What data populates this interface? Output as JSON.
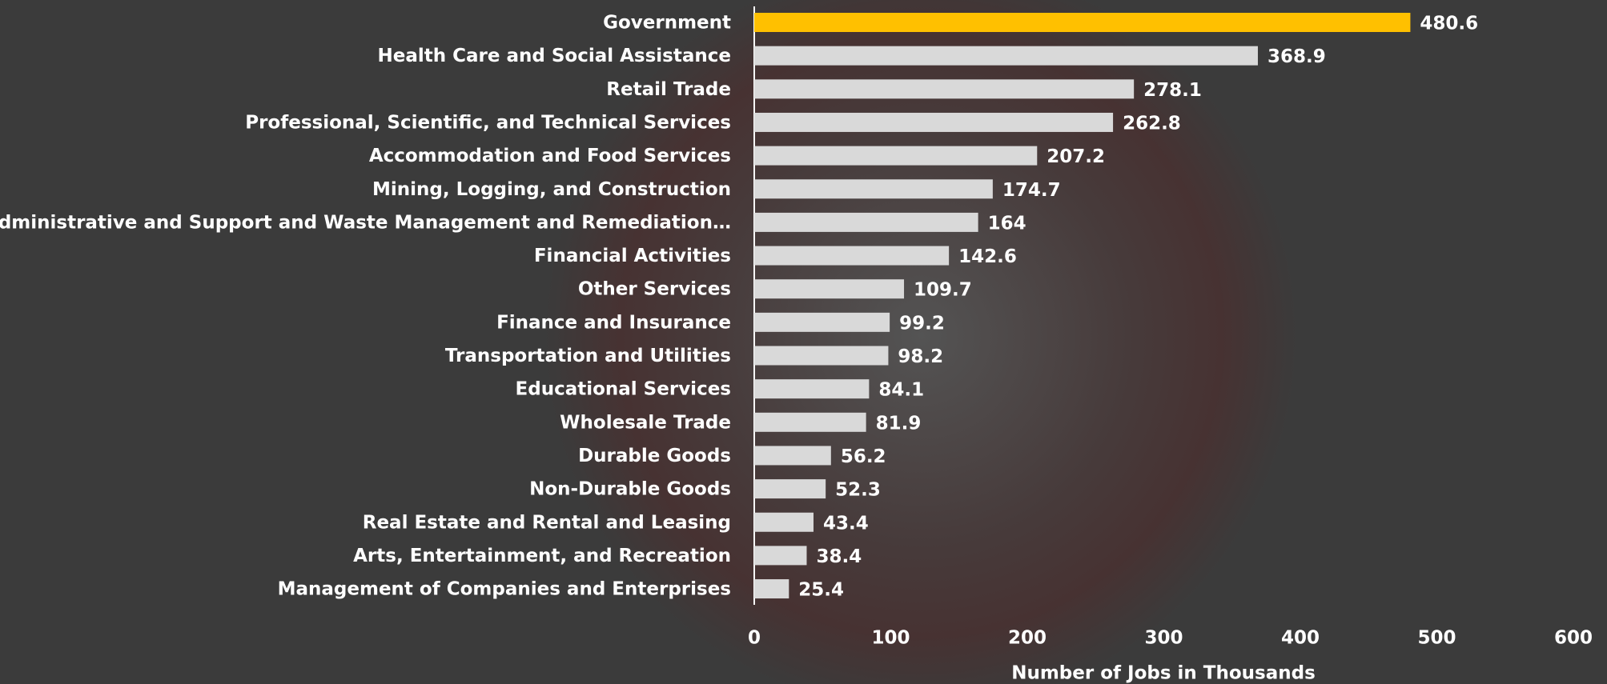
{
  "chart_data": {
    "type": "bar",
    "orientation": "horizontal",
    "x_axis_label": "Number of Jobs in Thousands",
    "categories": [
      "Government",
      "Health Care and Social Assistance",
      "Retail Trade",
      "Professional, Scientific, and Technical Services",
      "Accommodation and Food Services",
      "Mining, Logging, and Construction",
      "Administrative and Support and Waste Management and Remediation…",
      "Financial Activities",
      "Other Services",
      "Finance and Insurance",
      "Transportation and Utilities",
      "Educational Services",
      "Wholesale Trade",
      "Durable Goods",
      "Non-Durable Goods",
      "Real Estate and Rental and Leasing",
      "Arts, Entertainment, and Recreation",
      "Management of Companies and Enterprises"
    ],
    "values": [
      480.6,
      368.9,
      278.1,
      262.8,
      207.2,
      174.7,
      164,
      142.6,
      109.7,
      99.2,
      98.2,
      84.1,
      81.9,
      56.2,
      52.3,
      43.4,
      38.4,
      25.4
    ],
    "colors": [
      "#ffc000",
      "#d9d9d9",
      "#d9d9d9",
      "#d9d9d9",
      "#d9d9d9",
      "#d9d9d9",
      "#d9d9d9",
      "#d9d9d9",
      "#d9d9d9",
      "#d9d9d9",
      "#d9d9d9",
      "#d9d9d9",
      "#d9d9d9",
      "#d9d9d9",
      "#d9d9d9",
      "#d9d9d9",
      "#d9d9d9",
      "#d9d9d9"
    ],
    "value_label_colors": [
      "#ffc000",
      "#ffffff",
      "#ffffff",
      "#ffffff",
      "#ffffff",
      "#ffffff",
      "#ffffff",
      "#ffffff",
      "#ffffff",
      "#ffffff",
      "#ffffff",
      "#ffffff",
      "#ffffff",
      "#ffffff",
      "#ffffff",
      "#ffffff",
      "#ffffff",
      "#ffffff"
    ],
    "xlim": [
      0,
      600
    ],
    "xticks": [
      0,
      100,
      200,
      300,
      400,
      500,
      600
    ],
    "grid": false
  }
}
